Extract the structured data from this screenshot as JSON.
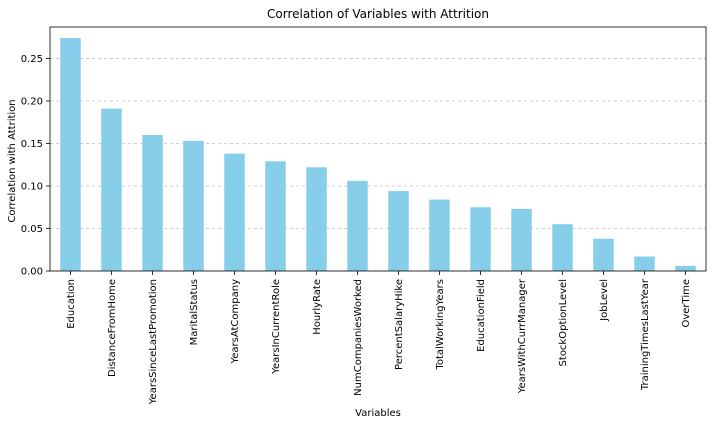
{
  "chart_data": {
    "type": "bar",
    "title": "Correlation of Variables with Attrition",
    "xlabel": "Variables",
    "ylabel": "Correlation with Attrition",
    "categories": [
      "Education",
      "DistanceFromHome",
      "YearsSinceLastPromotion",
      "MaritalStatus",
      "YearsAtCompany",
      "YearsInCurrentRole",
      "HourlyRate",
      "NumCompaniesWorked",
      "PercentSalaryHike",
      "TotalWorkingYears",
      "EducationField",
      "YearsWithCurrManager",
      "StockOptionLevel",
      "JobLevel",
      "TrainingTimesLastYear",
      "OverTime"
    ],
    "values": [
      0.274,
      0.191,
      0.16,
      0.153,
      0.138,
      0.129,
      0.122,
      0.106,
      0.094,
      0.084,
      0.075,
      0.073,
      0.055,
      0.038,
      0.017,
      0.006
    ],
    "ylim": [
      0,
      0.287
    ],
    "yticks": [
      "0.00",
      "0.05",
      "0.10",
      "0.15",
      "0.20",
      "0.25"
    ],
    "grid": "y-dashed",
    "bar_color": "#87ceeb",
    "grid_color": "#b0b0b0"
  }
}
